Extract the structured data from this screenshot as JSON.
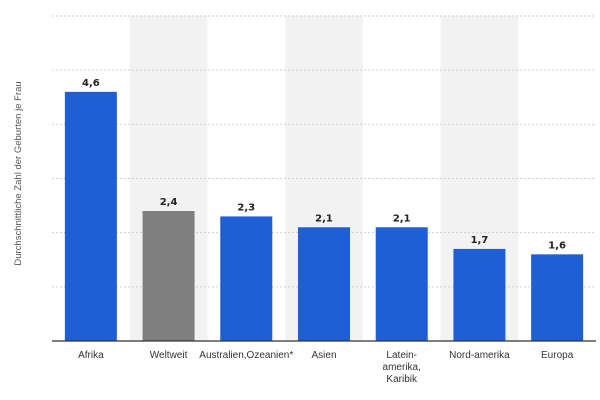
{
  "chart_data": {
    "type": "bar",
    "title": "",
    "xlabel": "",
    "ylabel": "Durchschnittliche Zahl der Geburten je Frau",
    "categories": [
      "Afrika",
      "Weltweit",
      "Australien,Ozeanien*",
      "Asien",
      "Latein-amerika, Karibik",
      "Nord-amerika",
      "Europa"
    ],
    "category_lines": [
      [
        "Afrika"
      ],
      [
        "Weltweit"
      ],
      [
        "Australien,Ozeanien*"
      ],
      [
        "Asien"
      ],
      [
        "Latein-",
        "amerika,",
        "Karibik"
      ],
      [
        "Nord-amerika"
      ],
      [
        "Europa"
      ]
    ],
    "values": [
      4.6,
      2.4,
      2.3,
      2.1,
      2.1,
      1.7,
      1.6
    ],
    "value_labels": [
      "4,6",
      "2,4",
      "2,3",
      "2,1",
      "2,1",
      "1,7",
      "1,6"
    ],
    "ylim": [
      0,
      6
    ],
    "grid": true,
    "highlight_category": "Weltweit",
    "colors": {
      "bar": "#1f5fd6",
      "highlight_bar": "#7f7f7f",
      "band": "#f2f2f2",
      "grid": "#d0d0d0",
      "axis": "#333333"
    }
  }
}
